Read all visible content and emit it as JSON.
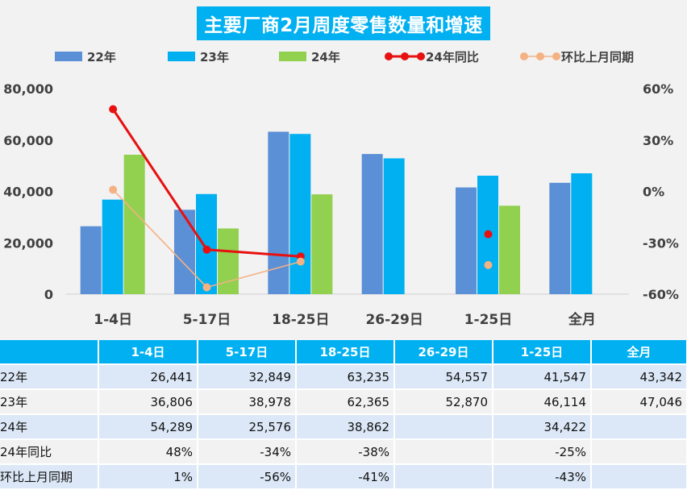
{
  "chart_data": {
    "type": "bar",
    "title": "主要厂商2月周度零售数量和增速",
    "categories": [
      "1-4日",
      "5-17日",
      "18-25日",
      "26-29日",
      "1-25日",
      "全月"
    ],
    "series": [
      {
        "name": "22年",
        "type": "bar",
        "axis": "left",
        "color": "#5b8fd6",
        "values": [
          26441,
          32849,
          63235,
          54557,
          41547,
          43342
        ]
      },
      {
        "name": "23年",
        "type": "bar",
        "axis": "left",
        "color": "#00b0f0",
        "values": [
          36806,
          38978,
          62365,
          52870,
          46114,
          47046
        ]
      },
      {
        "name": "24年",
        "type": "bar",
        "axis": "left",
        "color": "#92d050",
        "values": [
          54289,
          25576,
          38862,
          null,
          34422,
          null
        ]
      },
      {
        "name": "24年同比",
        "type": "line",
        "axis": "right",
        "color": "#e81010",
        "values": [
          48,
          -34,
          -38,
          null,
          -25,
          null
        ]
      },
      {
        "name": "环比上月同期",
        "type": "line",
        "axis": "right",
        "color": "#f4b183",
        "values": [
          1,
          -56,
          -41,
          null,
          -43,
          null
        ]
      }
    ],
    "y_left": {
      "min": 0,
      "max": 80000,
      "ticks": [
        "0",
        "20,000",
        "40,000",
        "60,000",
        "80,000"
      ]
    },
    "y_right": {
      "min": -60,
      "max": 60,
      "ticks": [
        "-60%",
        "-30%",
        "0%",
        "30%",
        "60%"
      ]
    },
    "legend_position": "top",
    "grid": false
  },
  "table": {
    "columns": [
      "1-4日",
      "5-17日",
      "18-25日",
      "26-29日",
      "1-25日",
      "全月"
    ],
    "rows": [
      {
        "label": "22年",
        "cells": [
          "26,441",
          "32,849",
          "63,235",
          "54,557",
          "41,547",
          "43,342"
        ]
      },
      {
        "label": "23年",
        "cells": [
          "36,806",
          "38,978",
          "62,365",
          "52,870",
          "46,114",
          "47,046"
        ]
      },
      {
        "label": "24年",
        "cells": [
          "54,289",
          "25,576",
          "38,862",
          "",
          "34,422",
          ""
        ]
      },
      {
        "label": "24年同比",
        "cells": [
          "48%",
          "-34%",
          "-38%",
          "",
          "-25%",
          ""
        ]
      },
      {
        "label": "环比上月同期",
        "cells": [
          "1%",
          "-56%",
          "-41%",
          "",
          "-43%",
          ""
        ]
      }
    ]
  }
}
